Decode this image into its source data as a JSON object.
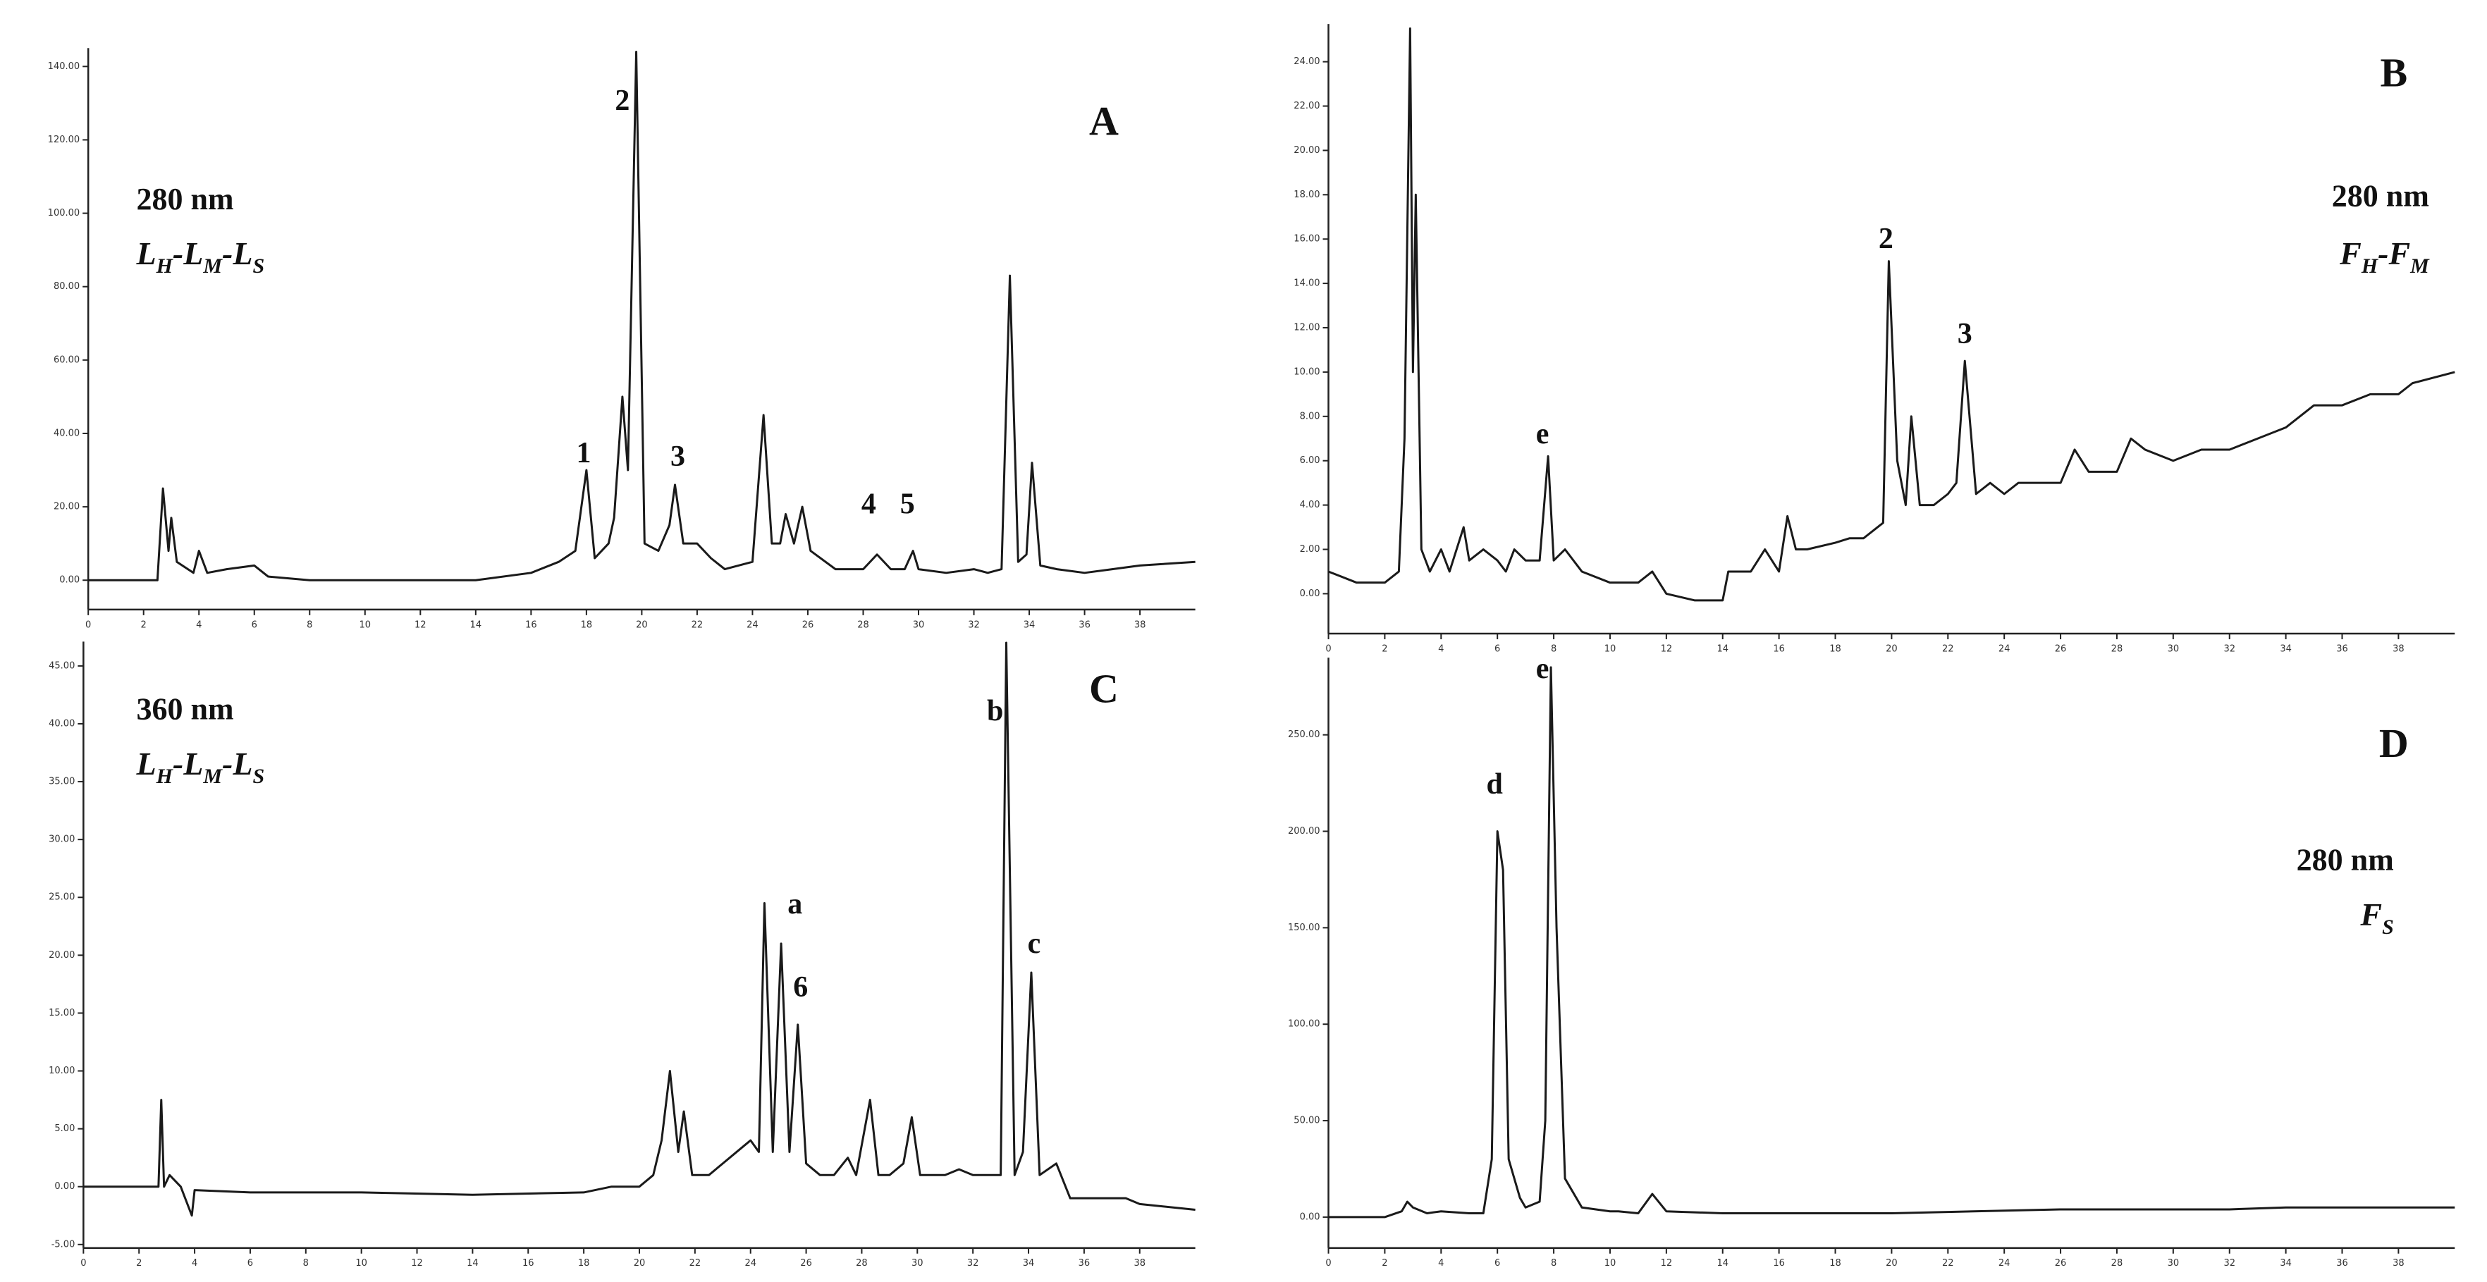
{
  "chart_data": [
    {
      "type": "line",
      "title": "A",
      "wavelength": "280 nm",
      "sample": [
        "L",
        "H",
        "-L",
        "M",
        "-L",
        "S"
      ],
      "color": "#1a1a1a",
      "xlim": [
        0,
        40
      ],
      "xticks": [
        0,
        2,
        4,
        6,
        8,
        10,
        12,
        14,
        16,
        18,
        20,
        22,
        24,
        26,
        28,
        30,
        32,
        34,
        36,
        38
      ],
      "ylim": [
        -8,
        145
      ],
      "yticks": [
        {
          "value": 0,
          "label": "0.00"
        },
        {
          "value": 20,
          "label": "20.00"
        },
        {
          "value": 40,
          "label": "40.00"
        },
        {
          "value": 60,
          "label": "60.00"
        },
        {
          "value": 80,
          "label": "80.00"
        },
        {
          "value": 100,
          "label": "100.00"
        },
        {
          "value": 120,
          "label": "120.00"
        },
        {
          "value": 140,
          "label": "140.00"
        }
      ],
      "x": [
        0,
        2.5,
        2.7,
        2.9,
        3.0,
        3.2,
        3.8,
        4,
        4.3,
        5,
        6,
        6.5,
        8,
        10,
        12,
        14,
        16,
        17,
        17.6,
        18,
        18.3,
        18.8,
        19,
        19.3,
        19.5,
        19.8,
        20.1,
        20.6,
        21,
        21.2,
        21.5,
        22,
        22.5,
        23,
        24,
        24.4,
        24.7,
        25,
        25.2,
        25.5,
        25.8,
        26.1,
        27,
        28,
        28.5,
        29,
        29.5,
        29.8,
        30,
        31,
        32,
        32.5,
        33,
        33.3,
        33.6,
        33.9,
        34.1,
        34.4,
        35,
        36,
        37,
        38,
        40
      ],
      "values": [
        0,
        0,
        25,
        8,
        17,
        5,
        2,
        8,
        2,
        3,
        4,
        1,
        0,
        0,
        0,
        0,
        2,
        5,
        8,
        30,
        6,
        10,
        17,
        50,
        30,
        144,
        10,
        8,
        15,
        26,
        10,
        10,
        6,
        3,
        5,
        45,
        10,
        10,
        18,
        10,
        20,
        8,
        3,
        3,
        7,
        3,
        3,
        8,
        3,
        2,
        3,
        2,
        3,
        83,
        5,
        7,
        32,
        4,
        3,
        2,
        3,
        4,
        5
      ],
      "peak_labels": [
        {
          "text": "1",
          "x": 17.9,
          "y": 34
        },
        {
          "text": "2",
          "x": 19.3,
          "y": 130
        },
        {
          "text": "3",
          "x": 21.3,
          "y": 33
        },
        {
          "text": "4",
          "x": 28.2,
          "y": 20
        },
        {
          "text": "5",
          "x": 29.6,
          "y": 20
        }
      ]
    },
    {
      "type": "line",
      "title": "B",
      "wavelength": "280 nm",
      "sample": [
        "F",
        "H",
        "-F",
        "M"
      ],
      "color": "#1a1a1a",
      "xlim": [
        0,
        40
      ],
      "xticks": [
        0,
        2,
        4,
        6,
        8,
        10,
        12,
        14,
        16,
        18,
        20,
        22,
        24,
        26,
        28,
        30,
        32,
        34,
        36,
        38
      ],
      "ylim": [
        -1.8,
        25.7
      ],
      "yticks": [
        {
          "value": 0,
          "label": "0.00"
        },
        {
          "value": 2,
          "label": "2.00"
        },
        {
          "value": 4,
          "label": "4.00"
        },
        {
          "value": 6,
          "label": "6.00"
        },
        {
          "value": 8,
          "label": "8.00"
        },
        {
          "value": 10,
          "label": "10.00"
        },
        {
          "value": 12,
          "label": "12.00"
        },
        {
          "value": 14,
          "label": "14.00"
        },
        {
          "value": 16,
          "label": "16.00"
        },
        {
          "value": 18,
          "label": "18.00"
        },
        {
          "value": 20,
          "label": "20.00"
        },
        {
          "value": 22,
          "label": "22.00"
        },
        {
          "value": 24,
          "label": "24.00"
        }
      ],
      "x": [
        0,
        1,
        2,
        2.5,
        2.7,
        2.9,
        3.0,
        3.1,
        3.3,
        3.6,
        4,
        4.3,
        4.8,
        5,
        5.5,
        6,
        6.3,
        6.6,
        7,
        7.5,
        7.8,
        8,
        8.4,
        9,
        10,
        11,
        11.5,
        12,
        13,
        14,
        14.2,
        15,
        15.5,
        16,
        16.3,
        16.6,
        17,
        18,
        18.5,
        19,
        19.5,
        19.7,
        19.9,
        20.2,
        20.5,
        20.7,
        21,
        21.5,
        22,
        22.3,
        22.6,
        23,
        23.5,
        24,
        24.5,
        25,
        25.5,
        26,
        26.5,
        27,
        28,
        28.5,
        29,
        30,
        31,
        32,
        33,
        34,
        35,
        36,
        37,
        38,
        38.5,
        40
      ],
      "values": [
        1,
        0.5,
        0.5,
        1,
        7,
        25.5,
        10,
        18,
        2,
        1,
        2,
        1,
        3,
        1.5,
        2,
        1.5,
        1,
        2,
        1.5,
        1.5,
        6.2,
        1.5,
        2,
        1,
        0.5,
        0.5,
        1,
        0,
        -0.3,
        -0.3,
        1,
        1,
        2,
        1,
        3.5,
        2,
        2,
        2.3,
        2.5,
        2.5,
        3,
        3.2,
        15,
        6,
        4,
        8,
        4,
        4,
        4.5,
        5,
        10.5,
        4.5,
        5,
        4.5,
        5,
        5,
        5,
        5,
        6.5,
        5.5,
        5.5,
        7,
        6.5,
        6,
        6.5,
        6.5,
        7,
        7.5,
        8.5,
        8.5,
        9,
        9,
        9.5,
        10
      ],
      "peak_labels": [
        {
          "text": "e",
          "x": 7.6,
          "y": 7.1
        },
        {
          "text": "2",
          "x": 19.8,
          "y": 15.9
        },
        {
          "text": "3",
          "x": 22.6,
          "y": 11.6
        }
      ]
    },
    {
      "type": "line",
      "title": "C",
      "wavelength": "360 nm",
      "sample": [
        "L",
        "H",
        "-L",
        "M",
        "-L",
        "S"
      ],
      "color": "#1a1a1a",
      "xlim": [
        0,
        40
      ],
      "xticks": [
        0,
        2,
        4,
        6,
        8,
        10,
        12,
        14,
        16,
        18,
        20,
        22,
        24,
        26,
        28,
        30,
        32,
        34,
        36,
        38
      ],
      "ylim": [
        -5.3,
        47.1
      ],
      "yticks": [
        {
          "value": -5,
          "label": "-5.00"
        },
        {
          "value": 0,
          "label": "0.00"
        },
        {
          "value": 5,
          "label": "5.00"
        },
        {
          "value": 10,
          "label": "10.00"
        },
        {
          "value": 15,
          "label": "15.00"
        },
        {
          "value": 20,
          "label": "20.00"
        },
        {
          "value": 25,
          "label": "25.00"
        },
        {
          "value": 30,
          "label": "30.00"
        },
        {
          "value": 35,
          "label": "35.00"
        },
        {
          "value": 40,
          "label": "40.00"
        },
        {
          "value": 45,
          "label": "45.00"
        }
      ],
      "x": [
        0,
        2,
        2.7,
        2.8,
        2.9,
        3.1,
        3.5,
        3.9,
        4,
        6,
        10,
        14,
        18,
        19,
        20,
        20.5,
        20.8,
        21.1,
        21.4,
        21.6,
        21.9,
        22.5,
        23,
        23.5,
        24,
        24.3,
        24.5,
        24.8,
        25.1,
        25.4,
        25.7,
        26,
        26.5,
        27,
        27.5,
        27.8,
        28.3,
        28.6,
        29,
        29.5,
        29.8,
        30.1,
        31,
        31.5,
        32,
        32.5,
        33,
        33.2,
        33.5,
        33.8,
        34.1,
        34.4,
        35,
        35.5,
        36,
        37,
        37.5,
        38,
        40
      ],
      "values": [
        0,
        0,
        0,
        7.5,
        0,
        1,
        0,
        -2.5,
        -0.3,
        -0.5,
        -0.5,
        -0.7,
        -0.5,
        0,
        0,
        1,
        4,
        10,
        3,
        6.5,
        1,
        1,
        2,
        3,
        4,
        3,
        24.5,
        3,
        21,
        3,
        14,
        2,
        1,
        1,
        2.5,
        1,
        7.5,
        1,
        1,
        2,
        6,
        1,
        1,
        1.5,
        1,
        1,
        1,
        47,
        1,
        3,
        18.5,
        1,
        2,
        -1,
        -1,
        -1,
        -1,
        -1.5,
        -2
      ],
      "peak_labels": [
        {
          "text": "a",
          "x": 25.6,
          "y": 24.2
        },
        {
          "text": "6",
          "x": 25.8,
          "y": 17
        },
        {
          "text": "b",
          "x": 32.8,
          "y": 40.9
        },
        {
          "text": "c",
          "x": 34.2,
          "y": 20.8
        }
      ]
    },
    {
      "type": "line",
      "title": "D",
      "wavelength": "280 nm",
      "sample": [
        "F",
        "S"
      ],
      "color": "#1a1a1a",
      "xlim": [
        0,
        40
      ],
      "xticks": [
        0,
        2,
        4,
        6,
        8,
        10,
        12,
        14,
        16,
        18,
        20,
        22,
        24,
        26,
        28,
        30,
        32,
        34,
        36,
        38
      ],
      "ylim": [
        -16,
        290
      ],
      "yticks": [
        {
          "value": 0,
          "label": "0.00"
        },
        {
          "value": 50,
          "label": "50.00"
        },
        {
          "value": 100,
          "label": "100.00"
        },
        {
          "value": 150,
          "label": "150.00"
        },
        {
          "value": 200,
          "label": "200.00"
        },
        {
          "value": 250,
          "label": "250.00"
        }
      ],
      "x": [
        0,
        2,
        2.6,
        2.8,
        3,
        3.5,
        4,
        5,
        5.5,
        5.8,
        6,
        6.2,
        6.4,
        6.8,
        7,
        7.5,
        7.7,
        7.9,
        8.1,
        8.4,
        9,
        10,
        10.3,
        11,
        11.5,
        12,
        14,
        20,
        26,
        30,
        32,
        34,
        36,
        40
      ],
      "values": [
        0,
        0,
        3,
        8,
        5,
        2,
        3,
        2,
        2,
        30,
        200,
        180,
        30,
        10,
        5,
        8,
        50,
        285,
        150,
        20,
        5,
        3,
        3,
        2,
        12,
        3,
        2,
        2,
        4,
        4,
        4,
        5,
        5,
        5
      ],
      "peak_labels": [
        {
          "text": "d",
          "x": 5.9,
          "y": 223
        },
        {
          "text": "e",
          "x": 7.6,
          "y": 283
        }
      ]
    }
  ]
}
